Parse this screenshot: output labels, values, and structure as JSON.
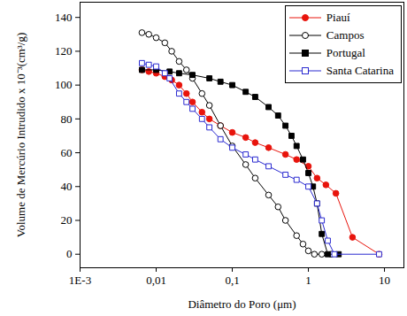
{
  "chart_data": {
    "type": "line",
    "x_label": "Diâmetro do Poro (μm)",
    "y_label": "Volume de Mercúrio Intrudido x 10⁻³(cm³/g)",
    "log": "x",
    "legend": "top-right",
    "xlim": [
      0.001,
      18
    ],
    "ylim": [
      -8,
      149
    ],
    "xticks": [
      {
        "value": 0.001,
        "label": "1E-3"
      },
      {
        "value": 0.01,
        "label": "0,01"
      },
      {
        "value": 0.1,
        "label": "0,1"
      },
      1,
      10
    ],
    "yticks": [
      0,
      20,
      40,
      60,
      80,
      100,
      120,
      140
    ],
    "series": [
      {
        "name": "Piauí",
        "color": "#e8140c",
        "marker": "circle",
        "x": [
          0.0065,
          0.008,
          0.01,
          0.013,
          0.016,
          0.02,
          0.025,
          0.03,
          0.04,
          0.05,
          0.07,
          0.1,
          0.15,
          0.2,
          0.3,
          0.5,
          0.7,
          1,
          1.3,
          1.7,
          2.3,
          3.8,
          8.5
        ],
        "values": [
          109,
          108,
          107,
          105,
          103,
          100,
          95,
          90,
          84,
          80,
          76,
          72,
          69,
          66,
          63,
          59,
          56,
          52,
          45,
          41,
          36,
          10,
          0
        ]
      },
      {
        "name": "Campos",
        "color": "#000000",
        "marker": "circle-open",
        "x": [
          0.0065,
          0.008,
          0.01,
          0.013,
          0.016,
          0.02,
          0.025,
          0.03,
          0.04,
          0.05,
          0.07,
          0.1,
          0.15,
          0.2,
          0.3,
          0.4,
          0.5,
          0.7,
          0.85,
          1,
          1.2,
          1.5,
          2
        ],
        "values": [
          131,
          130,
          128,
          125,
          120,
          114,
          109,
          104,
          95,
          88,
          76,
          64,
          53,
          45,
          35,
          28,
          20,
          11,
          6,
          2,
          0,
          0,
          0
        ]
      },
      {
        "name": "Portugal",
        "color": "#000000",
        "marker": "square",
        "x": [
          0.0065,
          0.01,
          0.015,
          0.02,
          0.03,
          0.05,
          0.07,
          0.1,
          0.15,
          0.2,
          0.3,
          0.4,
          0.5,
          0.6,
          0.7,
          0.85,
          1,
          1.15,
          1.3,
          1.5,
          1.8,
          2.5
        ],
        "values": [
          109,
          109,
          108,
          107,
          106,
          104,
          102,
          100,
          96,
          93,
          87,
          82,
          76,
          70,
          64,
          56,
          48,
          40,
          30,
          12,
          0,
          0
        ]
      },
      {
        "name": "Santa Catarina",
        "color": "#2a2ad0",
        "marker": "square-open",
        "x": [
          0.0065,
          0.008,
          0.01,
          0.013,
          0.015,
          0.02,
          0.025,
          0.03,
          0.04,
          0.05,
          0.07,
          0.1,
          0.15,
          0.2,
          0.3,
          0.5,
          0.7,
          1,
          1.3,
          1.5,
          1.8,
          2.2,
          8.5
        ],
        "values": [
          113,
          112,
          111,
          107,
          104,
          95,
          90,
          86,
          80,
          75,
          68,
          63,
          59,
          56,
          52,
          47,
          44,
          40,
          30,
          20,
          8,
          0,
          0
        ]
      }
    ]
  }
}
